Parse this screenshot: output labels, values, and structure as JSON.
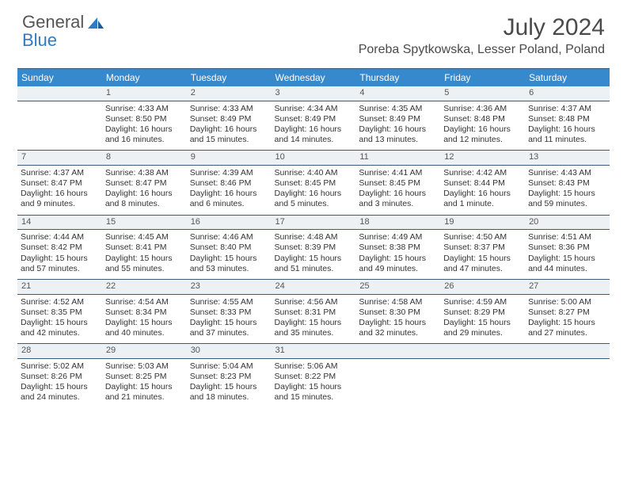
{
  "logo": {
    "word1": "General",
    "word2": "Blue"
  },
  "title": "July 2024",
  "subtitle": "Poreba Spytkowska, Lesser Poland, Poland",
  "colors": {
    "header_bg": "#3789ce",
    "header_border": "#3b5d7a",
    "daynum_bg": "#eef1f3",
    "logo_blue": "#2f7cc4",
    "text_gray": "#4a4a4a"
  },
  "day_headers": [
    "Sunday",
    "Monday",
    "Tuesday",
    "Wednesday",
    "Thursday",
    "Friday",
    "Saturday"
  ],
  "weeks": [
    {
      "nums": [
        "",
        "1",
        "2",
        "3",
        "4",
        "5",
        "6"
      ],
      "cells": [
        "",
        "Sunrise: 4:33 AM\nSunset: 8:50 PM\nDaylight: 16 hours and 16 minutes.",
        "Sunrise: 4:33 AM\nSunset: 8:49 PM\nDaylight: 16 hours and 15 minutes.",
        "Sunrise: 4:34 AM\nSunset: 8:49 PM\nDaylight: 16 hours and 14 minutes.",
        "Sunrise: 4:35 AM\nSunset: 8:49 PM\nDaylight: 16 hours and 13 minutes.",
        "Sunrise: 4:36 AM\nSunset: 8:48 PM\nDaylight: 16 hours and 12 minutes.",
        "Sunrise: 4:37 AM\nSunset: 8:48 PM\nDaylight: 16 hours and 11 minutes."
      ]
    },
    {
      "nums": [
        "7",
        "8",
        "9",
        "10",
        "11",
        "12",
        "13"
      ],
      "cells": [
        "Sunrise: 4:37 AM\nSunset: 8:47 PM\nDaylight: 16 hours and 9 minutes.",
        "Sunrise: 4:38 AM\nSunset: 8:47 PM\nDaylight: 16 hours and 8 minutes.",
        "Sunrise: 4:39 AM\nSunset: 8:46 PM\nDaylight: 16 hours and 6 minutes.",
        "Sunrise: 4:40 AM\nSunset: 8:45 PM\nDaylight: 16 hours and 5 minutes.",
        "Sunrise: 4:41 AM\nSunset: 8:45 PM\nDaylight: 16 hours and 3 minutes.",
        "Sunrise: 4:42 AM\nSunset: 8:44 PM\nDaylight: 16 hours and 1 minute.",
        "Sunrise: 4:43 AM\nSunset: 8:43 PM\nDaylight: 15 hours and 59 minutes."
      ]
    },
    {
      "nums": [
        "14",
        "15",
        "16",
        "17",
        "18",
        "19",
        "20"
      ],
      "cells": [
        "Sunrise: 4:44 AM\nSunset: 8:42 PM\nDaylight: 15 hours and 57 minutes.",
        "Sunrise: 4:45 AM\nSunset: 8:41 PM\nDaylight: 15 hours and 55 minutes.",
        "Sunrise: 4:46 AM\nSunset: 8:40 PM\nDaylight: 15 hours and 53 minutes.",
        "Sunrise: 4:48 AM\nSunset: 8:39 PM\nDaylight: 15 hours and 51 minutes.",
        "Sunrise: 4:49 AM\nSunset: 8:38 PM\nDaylight: 15 hours and 49 minutes.",
        "Sunrise: 4:50 AM\nSunset: 8:37 PM\nDaylight: 15 hours and 47 minutes.",
        "Sunrise: 4:51 AM\nSunset: 8:36 PM\nDaylight: 15 hours and 44 minutes."
      ]
    },
    {
      "nums": [
        "21",
        "22",
        "23",
        "24",
        "25",
        "26",
        "27"
      ],
      "cells": [
        "Sunrise: 4:52 AM\nSunset: 8:35 PM\nDaylight: 15 hours and 42 minutes.",
        "Sunrise: 4:54 AM\nSunset: 8:34 PM\nDaylight: 15 hours and 40 minutes.",
        "Sunrise: 4:55 AM\nSunset: 8:33 PM\nDaylight: 15 hours and 37 minutes.",
        "Sunrise: 4:56 AM\nSunset: 8:31 PM\nDaylight: 15 hours and 35 minutes.",
        "Sunrise: 4:58 AM\nSunset: 8:30 PM\nDaylight: 15 hours and 32 minutes.",
        "Sunrise: 4:59 AM\nSunset: 8:29 PM\nDaylight: 15 hours and 29 minutes.",
        "Sunrise: 5:00 AM\nSunset: 8:27 PM\nDaylight: 15 hours and 27 minutes."
      ]
    },
    {
      "nums": [
        "28",
        "29",
        "30",
        "31",
        "",
        "",
        ""
      ],
      "cells": [
        "Sunrise: 5:02 AM\nSunset: 8:26 PM\nDaylight: 15 hours and 24 minutes.",
        "Sunrise: 5:03 AM\nSunset: 8:25 PM\nDaylight: 15 hours and 21 minutes.",
        "Sunrise: 5:04 AM\nSunset: 8:23 PM\nDaylight: 15 hours and 18 minutes.",
        "Sunrise: 5:06 AM\nSunset: 8:22 PM\nDaylight: 15 hours and 15 minutes.",
        "",
        "",
        ""
      ]
    }
  ]
}
